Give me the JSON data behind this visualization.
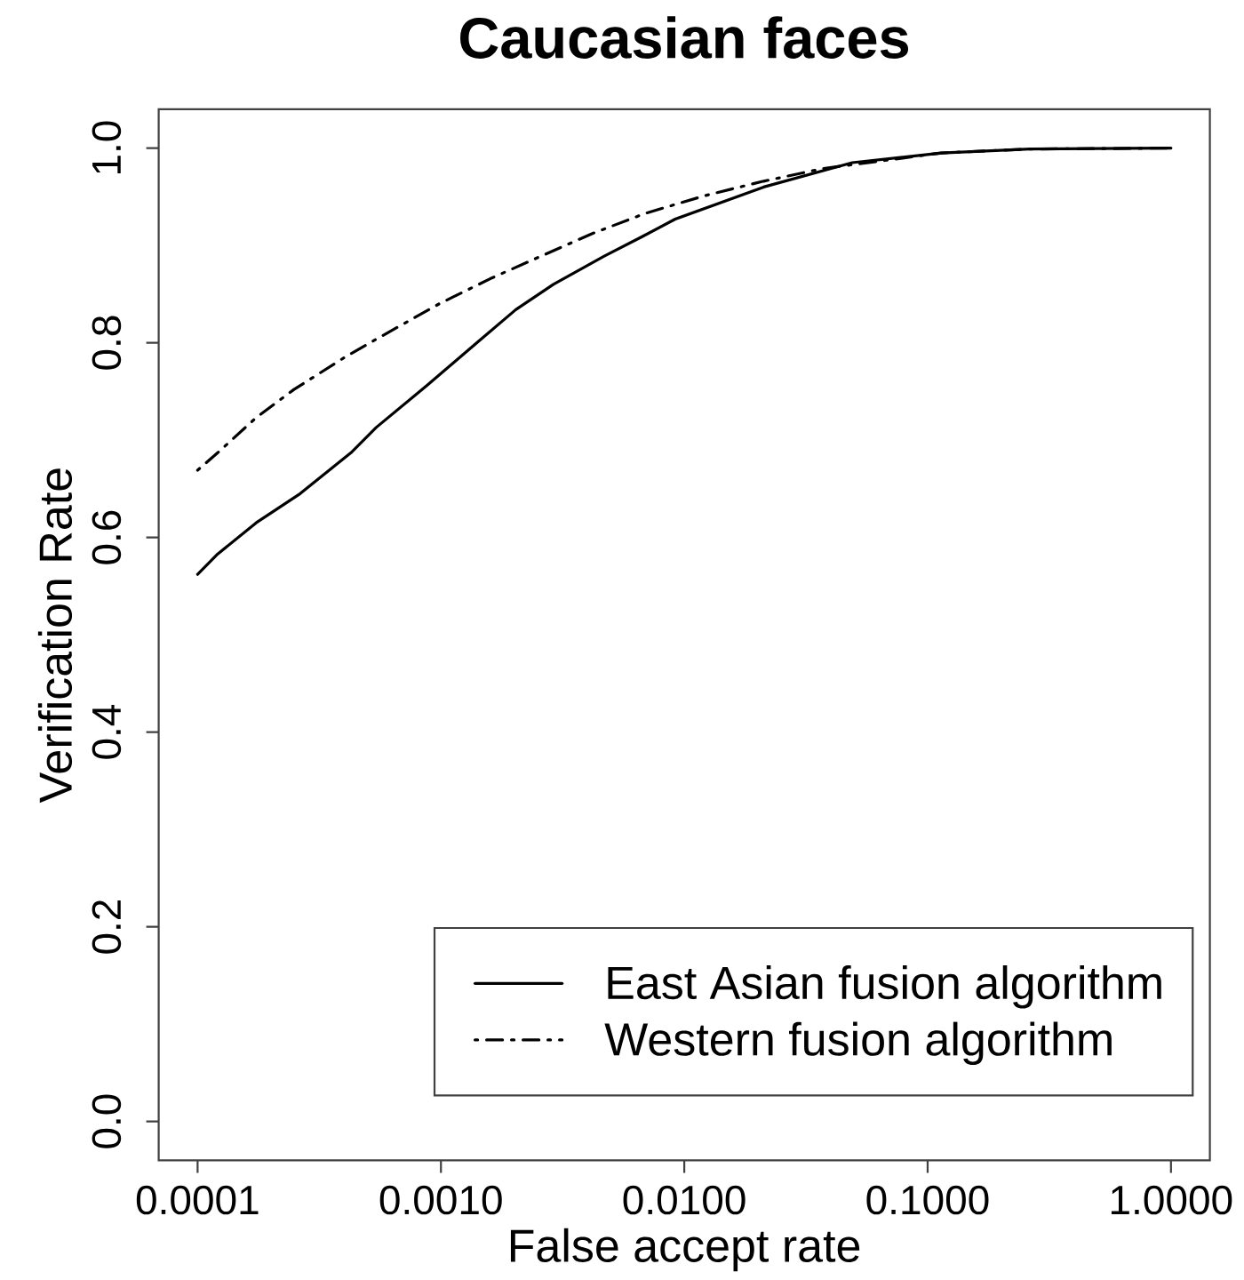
{
  "chart_data": {
    "type": "line",
    "title": "Caucasian faces",
    "xlabel": "False accept rate",
    "ylabel": "Verification Rate",
    "log": "x",
    "legend": "bottom right",
    "xlim": [
      6.92e-05,
      1.445
    ],
    "ylim": [
      -0.04,
      1.04
    ],
    "xticks": [
      {
        "value": 0.0001,
        "label": "0.0001"
      },
      {
        "value": 0.001,
        "label": "0.0010"
      },
      {
        "value": 0.01,
        "label": "0.0100"
      },
      {
        "value": 0.1,
        "label": "0.1000"
      },
      {
        "value": 1,
        "label": "1.0000"
      }
    ],
    "yticks": [
      {
        "value": 0,
        "label": "0.0"
      },
      {
        "value": 0.2,
        "label": "0.2"
      },
      {
        "value": 0.4,
        "label": "0.4"
      },
      {
        "value": 0.6,
        "label": "0.6"
      },
      {
        "value": 0.8,
        "label": "0.8"
      },
      {
        "value": 1,
        "label": "1.0"
      }
    ],
    "series": [
      {
        "name": "East Asian fusion algorithm",
        "color": "#000000",
        "line_style": "solid",
        "x": [
          0.0001,
          0.000121,
          0.000174,
          0.000264,
          0.000427,
          0.000542,
          0.000875,
          0.00142,
          0.00203,
          0.0029,
          0.00469,
          0.00671,
          0.00918,
          0.0212,
          0.049,
          0.114,
          0.263,
          1.0
        ],
        "values": [
          0.562,
          0.583,
          0.615,
          0.645,
          0.687,
          0.713,
          0.756,
          0.801,
          0.834,
          0.86,
          0.889,
          0.909,
          0.927,
          0.96,
          0.985,
          0.995,
          0.999,
          1.0
        ]
      },
      {
        "name": "Western fusion algorithm",
        "color": "#000000",
        "line_style": "dashdot",
        "x": [
          0.0001,
          0.000121,
          0.000174,
          0.000249,
          0.000402,
          0.000611,
          0.000984,
          0.0016,
          0.00258,
          0.00417,
          0.00693,
          0.0121,
          0.0212,
          0.0372,
          0.0652,
          0.114,
          0.263,
          1.0
        ],
        "values": [
          0.669,
          0.687,
          0.723,
          0.752,
          0.785,
          0.811,
          0.84,
          0.866,
          0.889,
          0.912,
          0.933,
          0.951,
          0.966,
          0.979,
          0.987,
          0.995,
          0.999,
          1.0
        ]
      }
    ]
  }
}
